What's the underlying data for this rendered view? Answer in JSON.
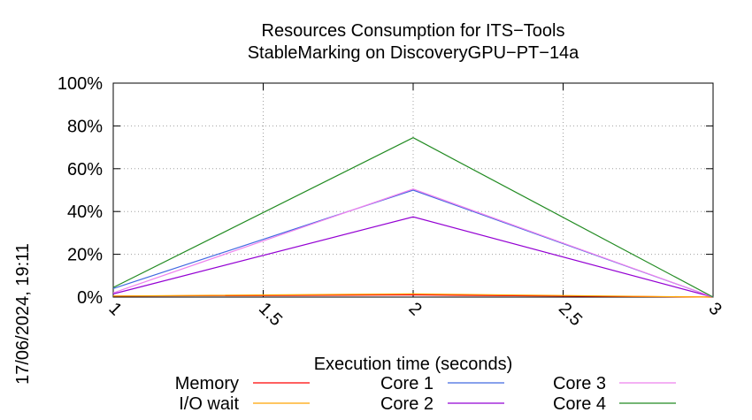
{
  "chart_data": {
    "type": "line",
    "title": "Resources Consumption for ITS−Tools",
    "subtitle": "StableMarking on DiscoveryGPU−PT−14a",
    "xlabel": "Execution time (seconds)",
    "ylabel": "",
    "timestamp": "17/06/2024, 19:11",
    "x_ticks": [
      "1",
      "1.5",
      "2",
      "2.5",
      "3"
    ],
    "y_ticks": [
      "0%",
      "20%",
      "40%",
      "60%",
      "80%",
      "100%"
    ],
    "xlim": [
      1,
      3
    ],
    "ylim": [
      0,
      100
    ],
    "grid": true,
    "legend_position": "bottom",
    "x": [
      1,
      2,
      3
    ],
    "series": [
      {
        "name": "Memory",
        "color": "#ff0000",
        "values": [
          0.5,
          1.0,
          0.0
        ]
      },
      {
        "name": "I/O wait",
        "color": "#ffa500",
        "values": [
          0.5,
          1.5,
          0.0
        ]
      },
      {
        "name": "Core 1",
        "color": "#4169e1",
        "values": [
          4.0,
          50.0,
          0.0
        ]
      },
      {
        "name": "Core 2",
        "color": "#9400d3",
        "values": [
          1.5,
          37.5,
          0.0
        ]
      },
      {
        "name": "Core 3",
        "color": "#ee82ee",
        "values": [
          2.0,
          50.5,
          0.0
        ]
      },
      {
        "name": "Core 4",
        "color": "#228b22",
        "values": [
          4.5,
          74.5,
          0.0
        ]
      }
    ]
  }
}
